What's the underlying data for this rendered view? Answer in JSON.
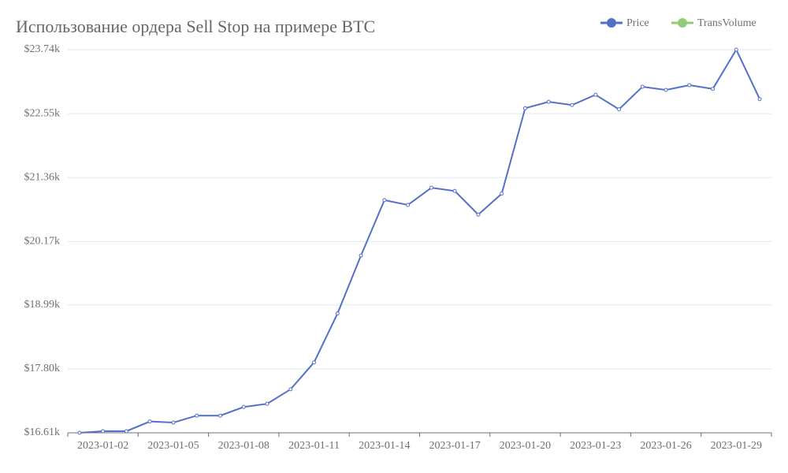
{
  "chart_data": {
    "type": "line",
    "title": "Использование ордера Sell Stop на примере BTC",
    "categories": [
      null,
      "2023-01-02",
      null,
      null,
      "2023-01-05",
      null,
      null,
      "2023-01-08",
      null,
      null,
      "2023-01-11",
      null,
      null,
      "2023-01-14",
      null,
      null,
      "2023-01-17",
      null,
      null,
      "2023-01-20",
      null,
      null,
      "2023-01-23",
      null,
      null,
      "2023-01-26",
      null,
      null,
      "2023-01-29",
      null
    ],
    "series": [
      {
        "name": "Price",
        "color": "#5470c6",
        "values": [
          16.61,
          16.64,
          16.64,
          16.82,
          16.8,
          16.93,
          16.93,
          17.09,
          17.15,
          17.42,
          17.92,
          18.83,
          19.91,
          20.94,
          20.85,
          21.17,
          21.11,
          20.67,
          21.06,
          22.65,
          22.77,
          22.71,
          22.9,
          22.63,
          23.05,
          22.99,
          23.08,
          23.01,
          23.74,
          22.82
        ]
      },
      {
        "name": "TransVolume",
        "color": "#91cc75",
        "values": [
          null,
          null,
          null,
          null,
          null,
          null,
          null,
          null,
          null,
          null,
          null,
          null,
          null,
          null,
          null,
          null,
          null,
          null,
          null,
          null,
          null,
          null,
          null,
          null,
          null,
          null,
          null,
          null,
          null,
          null
        ]
      }
    ],
    "ylim": [
      16.61,
      23.74
    ],
    "yticks": [
      {
        "value": 16.61,
        "label": "$16.61k"
      },
      {
        "value": 17.8,
        "label": "$17.80k"
      },
      {
        "value": 18.99,
        "label": "$18.99k"
      },
      {
        "value": 20.17,
        "label": "$20.17k"
      },
      {
        "value": 21.36,
        "label": "$21.36k"
      },
      {
        "value": 22.55,
        "label": "$22.55k"
      },
      {
        "value": 23.74,
        "label": "$23.74k"
      }
    ],
    "grid": true,
    "legend": "top-right"
  }
}
